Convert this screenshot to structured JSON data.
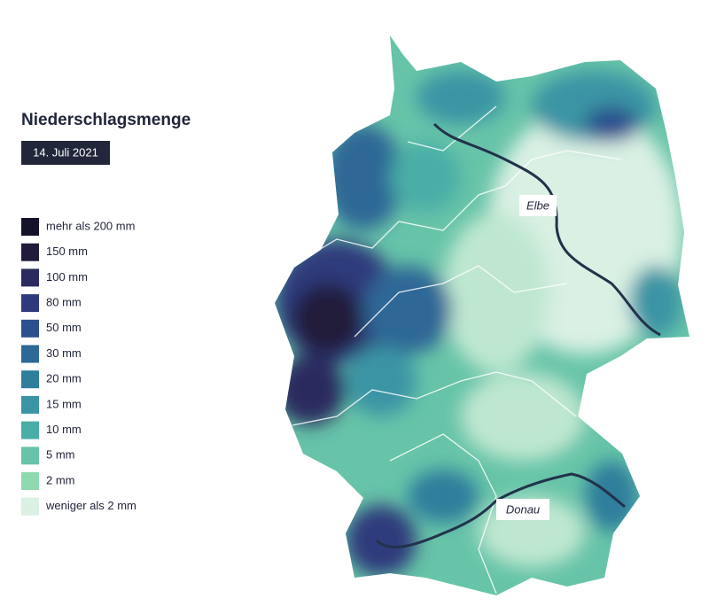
{
  "title": "Niederschlagsmenge",
  "date": "14. Juli 2021",
  "legend": [
    {
      "label": "mehr als 200 mm",
      "color": "#14112a"
    },
    {
      "label": "150 mm",
      "color": "#221a3a"
    },
    {
      "label": "100 mm",
      "color": "#2b2a5e"
    },
    {
      "label": "80 mm",
      "color": "#2f3a7c"
    },
    {
      "label": "50 mm",
      "color": "#2c4f8e"
    },
    {
      "label": "30 mm",
      "color": "#2d6896"
    },
    {
      "label": "20 mm",
      "color": "#2f7e9c"
    },
    {
      "label": "15 mm",
      "color": "#3a94a4"
    },
    {
      "label": "10 mm",
      "color": "#4aaea6"
    },
    {
      "label": "5 mm",
      "color": "#67c4a8"
    },
    {
      "label": "2 mm",
      "color": "#8fd9b0"
    },
    {
      "label": "weniger als 2 mm",
      "color": "#d9f0e3"
    }
  ],
  "rivers": [
    "Elbe",
    "Donau"
  ]
}
